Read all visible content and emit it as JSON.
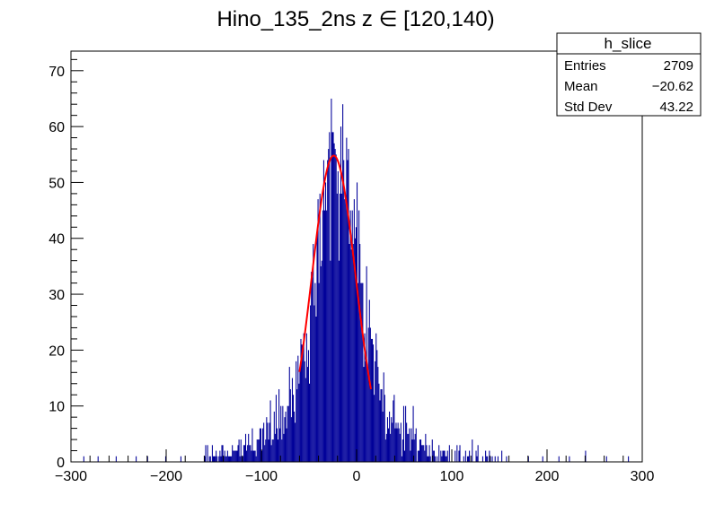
{
  "chart_data": {
    "type": "histogram",
    "title": "Hino_135_2ns z  ∈ [120,140)",
    "xlim": [
      -300,
      300
    ],
    "ylim": [
      0,
      73.5
    ],
    "x_ticks": [
      -300,
      -200,
      -100,
      0,
      100,
      200,
      300
    ],
    "y_ticks": [
      0,
      10,
      20,
      30,
      40,
      50,
      60,
      70
    ],
    "x_tick_labels": [
      "−300",
      "−200",
      "−100",
      "0",
      "100",
      "200",
      "300"
    ],
    "y_tick_labels": [
      "0",
      "10",
      "20",
      "30",
      "40",
      "50",
      "60",
      "70"
    ],
    "grid": false,
    "histogram_color": "#000099",
    "fit_color": "#ff0000",
    "bin_width": 1,
    "histogram_description": "approximately Gaussian distribution peaked near -25 with peak counts of about 55 and maximum fluctuations near 70",
    "histogram_envelope": {
      "x": [
        -300,
        -150,
        -120,
        -100,
        -80,
        -60,
        -50,
        -40,
        -30,
        -25,
        -20,
        -10,
        0,
        10,
        20,
        30,
        50,
        70,
        100,
        150,
        300
      ],
      "y": [
        0,
        1,
        2,
        4,
        8,
        15,
        24,
        40,
        52,
        55,
        54,
        48,
        38,
        28,
        18,
        10,
        5,
        3,
        1,
        0.5,
        0
      ]
    },
    "isolated_bins": [
      {
        "x": -287,
        "y": 1
      },
      {
        "x": -272,
        "y": 1
      },
      {
        "x": -253,
        "y": 1
      },
      {
        "x": -232,
        "y": 1
      },
      {
        "x": -220,
        "y": 1
      },
      {
        "x": -201,
        "y": 1
      },
      {
        "x": -185,
        "y": 1
      },
      {
        "x": 180,
        "y": 1
      },
      {
        "x": 195,
        "y": 1
      },
      {
        "x": 212,
        "y": 1
      },
      {
        "x": 223,
        "y": 1
      },
      {
        "x": 240,
        "y": 2
      },
      {
        "x": 262,
        "y": 1
      },
      {
        "x": 285,
        "y": 1
      }
    ],
    "fit": {
      "type": "gaussian",
      "amplitude": 54.8,
      "mean": -24,
      "sigma": 23,
      "x_range": [
        -60,
        15
      ]
    },
    "stats_box": {
      "name": "h_slice",
      "entries_label": "Entries",
      "entries_value": "2709",
      "mean_label": "Mean",
      "mean_value": "−20.62",
      "std_label": "Std Dev",
      "std_value": "43.22"
    }
  }
}
